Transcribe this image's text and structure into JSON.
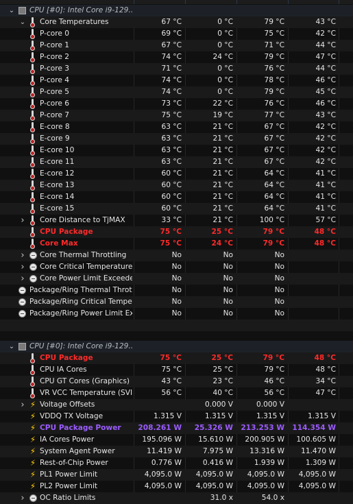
{
  "groups": [
    {
      "title": "CPU [#0]: Intel Core i9-129...",
      "rows": [
        {
          "name": "Core Temperatures",
          "icon": "thermometer",
          "ctrl": "expanded",
          "indent": 1,
          "v": [
            "67 °C",
            "0 °C",
            "79 °C",
            "43 °C"
          ]
        },
        {
          "name": "P-core 0",
          "icon": "thermometer",
          "ctrl": "none",
          "indent": 2,
          "v": [
            "69 °C",
            "0 °C",
            "75 °C",
            "42 °C"
          ]
        },
        {
          "name": "P-core 1",
          "icon": "thermometer",
          "ctrl": "none",
          "indent": 2,
          "v": [
            "67 °C",
            "0 °C",
            "71 °C",
            "44 °C"
          ]
        },
        {
          "name": "P-core 2",
          "icon": "thermometer",
          "ctrl": "none",
          "indent": 2,
          "v": [
            "74 °C",
            "24 °C",
            "79 °C",
            "47 °C"
          ]
        },
        {
          "name": "P-core 3",
          "icon": "thermometer",
          "ctrl": "none",
          "indent": 2,
          "v": [
            "71 °C",
            "0 °C",
            "76 °C",
            "44 °C"
          ]
        },
        {
          "name": "P-core 4",
          "icon": "thermometer",
          "ctrl": "none",
          "indent": 2,
          "v": [
            "74 °C",
            "0 °C",
            "78 °C",
            "46 °C"
          ]
        },
        {
          "name": "P-core 5",
          "icon": "thermometer",
          "ctrl": "none",
          "indent": 2,
          "v": [
            "74 °C",
            "0 °C",
            "79 °C",
            "45 °C"
          ]
        },
        {
          "name": "P-core 6",
          "icon": "thermometer",
          "ctrl": "none",
          "indent": 2,
          "v": [
            "73 °C",
            "22 °C",
            "76 °C",
            "46 °C"
          ]
        },
        {
          "name": "P-core 7",
          "icon": "thermometer",
          "ctrl": "none",
          "indent": 2,
          "v": [
            "75 °C",
            "19 °C",
            "77 °C",
            "43 °C"
          ]
        },
        {
          "name": "E-core 8",
          "icon": "thermometer",
          "ctrl": "none",
          "indent": 2,
          "v": [
            "63 °C",
            "21 °C",
            "67 °C",
            "42 °C"
          ]
        },
        {
          "name": "E-core 9",
          "icon": "thermometer",
          "ctrl": "none",
          "indent": 2,
          "v": [
            "63 °C",
            "21 °C",
            "67 °C",
            "42 °C"
          ]
        },
        {
          "name": "E-core 10",
          "icon": "thermometer",
          "ctrl": "none",
          "indent": 2,
          "v": [
            "63 °C",
            "21 °C",
            "67 °C",
            "42 °C"
          ]
        },
        {
          "name": "E-core 11",
          "icon": "thermometer",
          "ctrl": "none",
          "indent": 2,
          "v": [
            "63 °C",
            "21 °C",
            "67 °C",
            "42 °C"
          ]
        },
        {
          "name": "E-core 12",
          "icon": "thermometer",
          "ctrl": "none",
          "indent": 2,
          "v": [
            "60 °C",
            "21 °C",
            "64 °C",
            "41 °C"
          ]
        },
        {
          "name": "E-core 13",
          "icon": "thermometer",
          "ctrl": "none",
          "indent": 2,
          "v": [
            "60 °C",
            "21 °C",
            "64 °C",
            "41 °C"
          ]
        },
        {
          "name": "E-core 14",
          "icon": "thermometer",
          "ctrl": "none",
          "indent": 2,
          "v": [
            "60 °C",
            "21 °C",
            "64 °C",
            "41 °C"
          ]
        },
        {
          "name": "E-core 15",
          "icon": "thermometer",
          "ctrl": "none",
          "indent": 2,
          "v": [
            "60 °C",
            "21 °C",
            "64 °C",
            "41 °C"
          ]
        },
        {
          "name": "Core Distance to TjMAX",
          "icon": "thermometer",
          "ctrl": "collapsed",
          "indent": 1,
          "v": [
            "33 °C",
            "21 °C",
            "100 °C",
            "57 °C"
          ]
        },
        {
          "name": "CPU Package",
          "icon": "thermometer",
          "ctrl": "none",
          "indent": 1,
          "style": "red",
          "v": [
            "75 °C",
            "25 °C",
            "79 °C",
            "48 °C"
          ]
        },
        {
          "name": "Core Max",
          "icon": "thermometer",
          "ctrl": "none",
          "indent": 1,
          "style": "red",
          "v": [
            "75 °C",
            "24 °C",
            "79 °C",
            "48 °C"
          ]
        },
        {
          "name": "Core Thermal Throttling",
          "icon": "circle",
          "ctrl": "collapsed",
          "indent": 1,
          "v": [
            "No",
            "No",
            "No",
            ""
          ]
        },
        {
          "name": "Core Critical Temperature",
          "icon": "circle",
          "ctrl": "collapsed",
          "indent": 1,
          "v": [
            "No",
            "No",
            "No",
            ""
          ]
        },
        {
          "name": "Core Power Limit Exceeded",
          "icon": "circle",
          "ctrl": "collapsed",
          "indent": 1,
          "v": [
            "No",
            "No",
            "No",
            ""
          ]
        },
        {
          "name": "Package/Ring Thermal Throt...",
          "icon": "circle",
          "ctrl": "none",
          "indent": 0,
          "v": [
            "No",
            "No",
            "No",
            ""
          ]
        },
        {
          "name": "Package/Ring Critical Tempe...",
          "icon": "circle",
          "ctrl": "none",
          "indent": 0,
          "v": [
            "No",
            "No",
            "No",
            ""
          ]
        },
        {
          "name": "Package/Ring Power Limit Ex...",
          "icon": "circle",
          "ctrl": "none",
          "indent": 0,
          "v": [
            "No",
            "No",
            "No",
            ""
          ]
        }
      ]
    },
    {
      "title": "CPU [#0]: Intel Core i9-129...",
      "rows": [
        {
          "name": "CPU Package",
          "icon": "thermometer",
          "ctrl": "none",
          "indent": 1,
          "style": "red",
          "v": [
            "75 °C",
            "25 °C",
            "79 °C",
            "48 °C"
          ]
        },
        {
          "name": "CPU IA Cores",
          "icon": "thermometer",
          "ctrl": "none",
          "indent": 1,
          "v": [
            "75 °C",
            "25 °C",
            "79 °C",
            "48 °C"
          ]
        },
        {
          "name": "CPU GT Cores (Graphics)",
          "icon": "thermometer",
          "ctrl": "none",
          "indent": 1,
          "v": [
            "43 °C",
            "23 °C",
            "46 °C",
            "34 °C"
          ]
        },
        {
          "name": "VR VCC Temperature (SVID)",
          "icon": "thermometer",
          "ctrl": "none",
          "indent": 1,
          "v": [
            "56 °C",
            "40 °C",
            "56 °C",
            "47 °C"
          ]
        },
        {
          "name": "Voltage Offsets",
          "icon": "bolt",
          "ctrl": "collapsed",
          "indent": 1,
          "v": [
            "",
            "0.000 V",
            "0.000 V",
            ""
          ]
        },
        {
          "name": "VDDQ TX Voltage",
          "icon": "bolt",
          "ctrl": "none",
          "indent": 1,
          "v": [
            "1.315 V",
            "1.315 V",
            "1.315 V",
            "1.315 V"
          ]
        },
        {
          "name": "CPU Package Power",
          "icon": "bolt",
          "ctrl": "none",
          "indent": 1,
          "style": "purple",
          "v": [
            "208.261 W",
            "25.326 W",
            "213.253 W",
            "114.354 W"
          ]
        },
        {
          "name": "IA Cores Power",
          "icon": "bolt",
          "ctrl": "none",
          "indent": 1,
          "v": [
            "195.096 W",
            "15.610 W",
            "200.905 W",
            "100.605 W"
          ]
        },
        {
          "name": "System Agent Power",
          "icon": "bolt",
          "ctrl": "none",
          "indent": 1,
          "v": [
            "11.419 W",
            "7.975 W",
            "13.316 W",
            "11.470 W"
          ]
        },
        {
          "name": "Rest-of-Chip Power",
          "icon": "bolt",
          "ctrl": "none",
          "indent": 1,
          "v": [
            "0.776 W",
            "0.416 W",
            "1.939 W",
            "1.309 W"
          ]
        },
        {
          "name": "PL1 Power Limit",
          "icon": "bolt",
          "ctrl": "none",
          "indent": 1,
          "v": [
            "4,095.0 W",
            "4,095.0 W",
            "4,095.0 W",
            "4,095.0 W"
          ]
        },
        {
          "name": "PL2 Power Limit",
          "icon": "bolt",
          "ctrl": "none",
          "indent": 1,
          "v": [
            "4,095.0 W",
            "4,095.0 W",
            "4,095.0 W",
            "4,095.0 W"
          ]
        },
        {
          "name": "OC Ratio Limits",
          "icon": "circle",
          "ctrl": "collapsed",
          "indent": 1,
          "v": [
            "",
            "31.0 x",
            "54.0 x",
            ""
          ]
        }
      ]
    }
  ]
}
